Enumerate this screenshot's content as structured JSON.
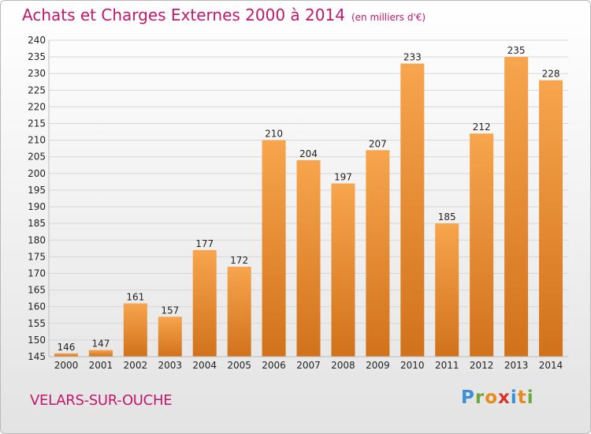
{
  "title": "Achats et Charges Externes 2000 à 2014",
  "unit": "(en milliers d'€)",
  "commune": "VELARS-SUR-OUCHE",
  "logo": [
    "P",
    "r",
    "o",
    "x",
    "i",
    "t",
    "i"
  ],
  "colors": {
    "title": "#c0186b",
    "bar_top": "#f7a54e",
    "bar_bottom": "#d1721b",
    "grid": "#d7d7d7",
    "logo": [
      "#3c8fd2",
      "#6aa93a",
      "#e68a1e",
      "#d8322b",
      "#3c8fd2",
      "#e68a1e",
      "#6aa93a"
    ]
  },
  "chart_data": {
    "type": "bar",
    "categories": [
      "2000",
      "2001",
      "2002",
      "2003",
      "2004",
      "2005",
      "2006",
      "2007",
      "2008",
      "2009",
      "2010",
      "2011",
      "2012",
      "2013",
      "2014"
    ],
    "values": [
      146,
      147,
      161,
      157,
      177,
      172,
      210,
      204,
      197,
      207,
      233,
      185,
      212,
      235,
      228
    ],
    "ylim": [
      145,
      240
    ],
    "yticks": [
      145,
      150,
      155,
      160,
      165,
      170,
      175,
      180,
      185,
      190,
      195,
      200,
      205,
      210,
      215,
      220,
      225,
      230,
      235,
      240
    ],
    "grid": true,
    "title": "Achats et Charges Externes 2000 à 2014",
    "xlabel": "",
    "ylabel": ""
  }
}
